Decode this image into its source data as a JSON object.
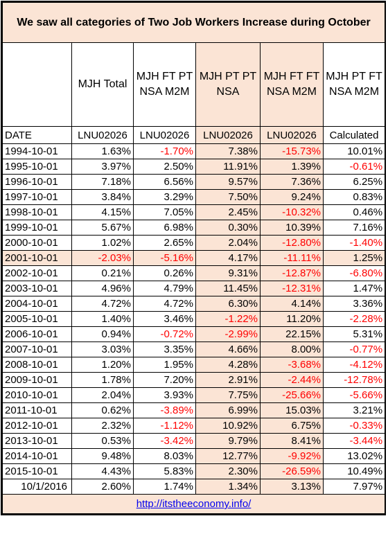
{
  "title": "We saw all categories of Two Job Workers Increase during October",
  "columns": [
    {
      "label": "",
      "code": "DATE"
    },
    {
      "label": "MJH Total",
      "code": "LNU02026"
    },
    {
      "label": "MJH FT PT NSA M2M",
      "code": "LNU02026"
    },
    {
      "label": "MJH PT PT NSA",
      "code": "LNU02026"
    },
    {
      "label": "MJH FT FT NSA M2M",
      "code": "LNU02026"
    },
    {
      "label": "MJH PT FT NSA M2M",
      "code": "Calculated"
    }
  ],
  "rows": [
    [
      "1994-10-01",
      "1.63%",
      "-1.70%",
      "7.38%",
      "-15.73%",
      "10.01%"
    ],
    [
      "1995-10-01",
      "3.97%",
      "2.50%",
      "11.91%",
      "1.39%",
      "-0.61%"
    ],
    [
      "1996-10-01",
      "7.18%",
      "6.56%",
      "9.57%",
      "7.36%",
      "6.25%"
    ],
    [
      "1997-10-01",
      "3.84%",
      "3.29%",
      "7.50%",
      "9.24%",
      "0.83%"
    ],
    [
      "1998-10-01",
      "4.15%",
      "7.05%",
      "2.45%",
      "-10.32%",
      "0.46%"
    ],
    [
      "1999-10-01",
      "5.67%",
      "6.98%",
      "0.30%",
      "10.39%",
      "7.16%"
    ],
    [
      "2000-10-01",
      "1.02%",
      "2.65%",
      "2.04%",
      "-12.80%",
      "-1.40%"
    ],
    [
      "2001-10-01",
      "-2.03%",
      "-5.16%",
      "4.17%",
      "-11.11%",
      "1.25%"
    ],
    [
      "2002-10-01",
      "0.21%",
      "0.26%",
      "9.31%",
      "-12.87%",
      "-6.80%"
    ],
    [
      "2003-10-01",
      "4.96%",
      "4.79%",
      "11.45%",
      "-12.31%",
      "1.47%"
    ],
    [
      "2004-10-01",
      "4.72%",
      "4.72%",
      "6.30%",
      "4.14%",
      "3.36%"
    ],
    [
      "2005-10-01",
      "1.40%",
      "3.46%",
      "-1.22%",
      "11.20%",
      "-2.28%"
    ],
    [
      "2006-10-01",
      "0.94%",
      "-0.72%",
      "-2.99%",
      "22.15%",
      "5.31%"
    ],
    [
      "2007-10-01",
      "3.03%",
      "3.35%",
      "4.66%",
      "8.00%",
      "-0.77%"
    ],
    [
      "2008-10-01",
      "1.20%",
      "1.95%",
      "4.28%",
      "-3.68%",
      "-4.12%"
    ],
    [
      "2009-10-01",
      "1.78%",
      "7.20%",
      "2.91%",
      "-2.44%",
      "-12.78%"
    ],
    [
      "2010-10-01",
      "2.04%",
      "3.93%",
      "7.75%",
      "-25.66%",
      "-5.66%"
    ],
    [
      "2011-10-01",
      "0.62%",
      "-3.89%",
      "6.99%",
      "15.03%",
      "3.21%"
    ],
    [
      "2012-10-01",
      "2.32%",
      "-1.12%",
      "10.92%",
      "6.75%",
      "-0.33%"
    ],
    [
      "2013-10-01",
      "0.53%",
      "-3.42%",
      "9.79%",
      "8.41%",
      "-3.44%"
    ],
    [
      "2014-10-01",
      "9.48%",
      "8.03%",
      "12.77%",
      "-9.92%",
      "13.02%"
    ],
    [
      "2015-10-01",
      "4.43%",
      "5.83%",
      "2.30%",
      "-26.59%",
      "10.49%"
    ],
    [
      "10/1/2016",
      "2.60%",
      "1.74%",
      "1.34%",
      "3.13%",
      "7.97%"
    ]
  ],
  "footer": {
    "link_text": "http://itstheeconomy.info/"
  },
  "colors": {
    "shade": "#fbe4d5",
    "negative": "#ff0000",
    "link": "#0000ee"
  }
}
